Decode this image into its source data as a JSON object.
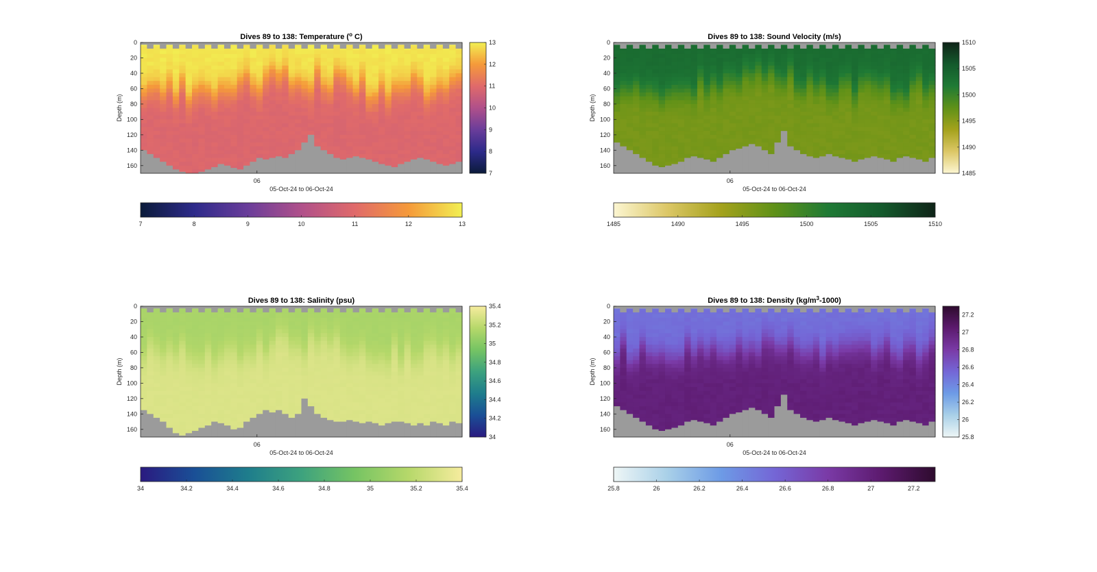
{
  "figure": {
    "depth_axis": {
      "label": "Depth (m)",
      "ylim": [
        0,
        170
      ],
      "ticks": [
        0,
        20,
        40,
        60,
        80,
        100,
        120,
        140,
        160
      ]
    },
    "time_axis": {
      "label": "05-Oct-24 to 06-Oct-24",
      "tick_label": "06"
    },
    "bottom_fill_color": "#9b9b9b"
  },
  "chart_data": [
    {
      "id": "temperature",
      "type": "heatmap",
      "title": "Dives 89 to 138: Temperature (",
      "title_sup": "o",
      "title_suffix": " C)",
      "xlabel": "05-Oct-24 to 06-Oct-24",
      "ylabel": "Depth (m)",
      "ylim": [
        0,
        170
      ],
      "x_tick": "06",
      "colorbar_ticks": [
        "13",
        "12",
        "11",
        "10",
        "9",
        "8",
        "7"
      ],
      "hcolorbar_ticks": [
        "7",
        "8",
        "9",
        "10",
        "11",
        "12",
        "13"
      ],
      "clim": [
        7,
        13
      ],
      "colormap": [
        "#0b1b3a",
        "#2d2a8a",
        "#6a3d9a",
        "#b0508a",
        "#e06a6a",
        "#f59a3a",
        "#f2ef52"
      ],
      "profile": {
        "surface": 12.9,
        "mixed_layer_depth": 55,
        "deep": 10.9
      },
      "bottom_depths": [
        140,
        145,
        150,
        155,
        160,
        165,
        168,
        170,
        170,
        168,
        165,
        162,
        158,
        160,
        163,
        165,
        160,
        155,
        150,
        152,
        150,
        148,
        150,
        145,
        140,
        130,
        120,
        135,
        140,
        145,
        150,
        152,
        150,
        148,
        150,
        152,
        155,
        158,
        160,
        162,
        158,
        155,
        152,
        150,
        152,
        155,
        158,
        160,
        158,
        155
      ]
    },
    {
      "id": "sound_velocity",
      "type": "heatmap",
      "title": "Dives 89 to 138: Sound Velocity (m/s)",
      "xlabel": "05-Oct-24 to 06-Oct-24",
      "ylabel": "Depth (m)",
      "ylim": [
        0,
        170
      ],
      "x_tick": "06",
      "colorbar_ticks": [
        "1510",
        "1505",
        "1500",
        "1495",
        "1490",
        "1485"
      ],
      "hcolorbar_ticks": [
        "1485",
        "1490",
        "1495",
        "1500",
        "1505",
        "1510"
      ],
      "clim": [
        1485,
        1510
      ],
      "colormap": [
        "#fcf6d2",
        "#dcc766",
        "#a4a21c",
        "#5f9118",
        "#1f7a35",
        "#145a2c",
        "#0f2418"
      ],
      "profile": {
        "surface": 1503.5,
        "mixed_layer_depth": 55,
        "deep": 1496.0
      },
      "bottom_depths": [
        130,
        135,
        140,
        145,
        150,
        155,
        160,
        162,
        160,
        158,
        155,
        150,
        148,
        150,
        152,
        155,
        150,
        145,
        140,
        138,
        135,
        132,
        135,
        140,
        145,
        130,
        115,
        135,
        140,
        145,
        148,
        150,
        148,
        145,
        148,
        150,
        152,
        155,
        152,
        150,
        148,
        150,
        152,
        155,
        150,
        148,
        150,
        152,
        155,
        150
      ]
    },
    {
      "id": "salinity",
      "type": "heatmap",
      "title": "Dives 89 to 138: Salinity (psu)",
      "xlabel": "05-Oct-24 to 06-Oct-24",
      "ylabel": "Depth (m)",
      "ylim": [
        0,
        170
      ],
      "x_tick": "06",
      "colorbar_ticks": [
        "35.4",
        "35.2",
        "35",
        "34.8",
        "34.6",
        "34.4",
        "34.2",
        "34"
      ],
      "hcolorbar_ticks": [
        "34",
        "34.2",
        "34.4",
        "34.6",
        "34.8",
        "35",
        "35.2",
        "35.4"
      ],
      "clim": [
        34,
        35.4
      ],
      "colormap": [
        "#2a1a80",
        "#1a4f96",
        "#1e7d8c",
        "#3da27e",
        "#76c463",
        "#b6d86a",
        "#f6ec9e"
      ],
      "profile": {
        "surface": 35.12,
        "mixed_layer_depth": 55,
        "deep": 35.3
      },
      "bottom_depths": [
        135,
        140,
        145,
        150,
        158,
        165,
        168,
        165,
        162,
        158,
        155,
        150,
        152,
        155,
        160,
        158,
        150,
        145,
        140,
        135,
        138,
        135,
        140,
        145,
        140,
        120,
        130,
        140,
        145,
        148,
        150,
        150,
        148,
        150,
        152,
        150,
        152,
        155,
        152,
        150,
        150,
        152,
        155,
        152,
        155,
        150,
        152,
        155,
        150,
        152
      ]
    },
    {
      "id": "density",
      "type": "heatmap",
      "title": "Dives 89 to 138: Density (kg/m",
      "title_sup": "3",
      "title_suffix": "-1000)",
      "xlabel": "05-Oct-24 to 06-Oct-24",
      "ylabel": "Depth (m)",
      "ylim": [
        0,
        170
      ],
      "x_tick": "06",
      "colorbar_ticks": [
        "27.2",
        "27",
        "26.8",
        "26.6",
        "26.4",
        "26.2",
        "26",
        "25.8"
      ],
      "hcolorbar_ticks": [
        "25.8",
        "26",
        "26.2",
        "26.4",
        "26.6",
        "26.8",
        "27",
        "27.2"
      ],
      "clim": [
        25.8,
        27.3
      ],
      "colormap": [
        "#eef6f6",
        "#a9d0e8",
        "#6d9be6",
        "#7466d6",
        "#7a3aa6",
        "#5c1a6e",
        "#2e0b2e"
      ],
      "profile": {
        "surface": 26.5,
        "mixed_layer_depth": 55,
        "deep": 27.0
      },
      "bottom_depths": [
        130,
        135,
        140,
        145,
        150,
        155,
        160,
        162,
        160,
        158,
        155,
        150,
        148,
        150,
        152,
        155,
        150,
        145,
        140,
        138,
        135,
        132,
        135,
        140,
        145,
        130,
        115,
        135,
        140,
        145,
        148,
        150,
        148,
        145,
        148,
        150,
        152,
        155,
        152,
        150,
        148,
        150,
        152,
        155,
        150,
        148,
        150,
        152,
        155,
        150
      ]
    }
  ]
}
